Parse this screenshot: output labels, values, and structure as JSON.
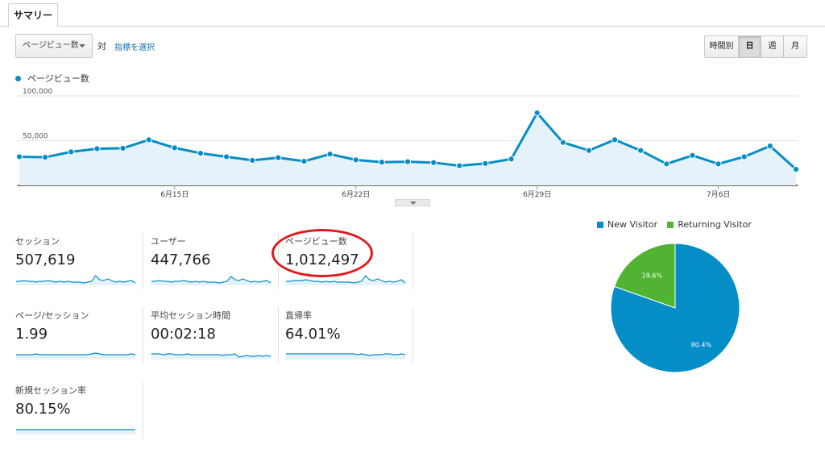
{
  "tabs": [
    {
      "label": "サマリー",
      "active": true
    }
  ],
  "controls": {
    "metric_select_value": "ページビュー数",
    "vs_text": "対",
    "select_metric_link": "指標を選択",
    "periods": [
      {
        "label": "時間別",
        "active": false
      },
      {
        "label": "日",
        "active": true
      },
      {
        "label": "週",
        "active": false
      },
      {
        "label": "月",
        "active": false
      }
    ]
  },
  "legend": {
    "label": "ページビュー数",
    "color": "#058dc7"
  },
  "chart_data": {
    "type": "area",
    "series": [
      {
        "name": "ページビュー数",
        "color": "#058dc7",
        "values": [
          32000,
          31500,
          37500,
          41000,
          41500,
          51000,
          42000,
          36000,
          32000,
          28000,
          31000,
          27000,
          35000,
          28500,
          26000,
          26500,
          25500,
          22000,
          24500,
          29500,
          81000,
          48000,
          39000,
          51000,
          39000,
          24000,
          33500,
          24000,
          32000,
          44000,
          18000
        ]
      }
    ],
    "x_tick_labels": [
      "6月15日",
      "6月22日",
      "6月29日",
      "7月6日"
    ],
    "x_tick_indices": [
      6,
      13,
      20,
      27
    ],
    "y_tick_labels": [
      "100,000",
      "50,000"
    ],
    "y_tick_values": [
      100000,
      50000
    ],
    "ylim": [
      0,
      100000
    ],
    "grid": true
  },
  "metrics": [
    {
      "label": "セッション",
      "value": "507,619",
      "spark": [
        5,
        5,
        6,
        5,
        5,
        4,
        5,
        5,
        6,
        5,
        4,
        5,
        4,
        5,
        4,
        4,
        4,
        3,
        4,
        5,
        12,
        7,
        6,
        8,
        6,
        4,
        5,
        4,
        5,
        6,
        3
      ]
    },
    {
      "label": "ユーザー",
      "value": "447,766",
      "spark": [
        5,
        5,
        6,
        5,
        5,
        4,
        5,
        5,
        6,
        5,
        4,
        5,
        4,
        5,
        4,
        4,
        4,
        3,
        4,
        5,
        11,
        7,
        6,
        8,
        6,
        4,
        5,
        4,
        5,
        6,
        3
      ]
    },
    {
      "label": "ページビュー数",
      "value": "1,012,497",
      "spark": [
        5,
        5,
        6,
        6,
        6,
        7,
        6,
        5,
        5,
        4,
        5,
        4,
        5,
        4,
        4,
        4,
        4,
        3,
        4,
        5,
        12,
        7,
        6,
        8,
        6,
        4,
        5,
        4,
        5,
        7,
        3
      ]
    },
    {
      "label": "ページ/セッション",
      "value": "1.99",
      "spark": [
        6,
        6,
        6,
        6,
        6,
        7,
        6,
        6,
        6,
        6,
        6,
        6,
        6,
        6,
        6,
        6,
        6,
        6,
        6,
        7,
        8,
        7,
        6,
        6,
        6,
        6,
        6,
        6,
        6,
        7,
        6
      ]
    },
    {
      "label": "平均セッション時間",
      "value": "00:02:18",
      "spark": [
        7,
        7,
        7,
        6,
        7,
        7,
        6,
        6,
        6,
        7,
        6,
        6,
        6,
        6,
        6,
        6,
        6,
        6,
        5,
        6,
        6,
        7,
        3,
        4,
        5,
        4,
        4,
        5,
        4,
        5,
        4
      ]
    },
    {
      "label": "直帰率",
      "value": "64.01%",
      "spark": [
        7,
        7,
        7,
        7,
        7,
        7,
        7,
        7,
        7,
        7,
        7,
        7,
        7,
        7,
        7,
        7,
        7,
        7,
        6,
        7,
        6,
        5,
        6,
        6,
        6,
        7,
        7,
        6,
        6,
        7,
        6
      ]
    },
    {
      "label": "新規セッション率",
      "value": "80.15%",
      "spark": [
        6,
        6,
        6,
        6,
        6,
        6,
        6,
        6,
        6,
        6,
        6,
        6,
        6,
        6,
        6,
        6,
        6,
        6,
        6,
        6,
        6,
        6,
        6,
        6,
        6,
        6,
        6,
        6,
        6,
        6,
        6
      ]
    }
  ],
  "pie": {
    "slices": [
      {
        "name": "New Visitor",
        "value": 80.4,
        "label": "80.4%",
        "color": "#058dc7"
      },
      {
        "name": "Returning Visitor",
        "value": 19.6,
        "label": "19.6%",
        "color": "#50b432"
      }
    ]
  }
}
